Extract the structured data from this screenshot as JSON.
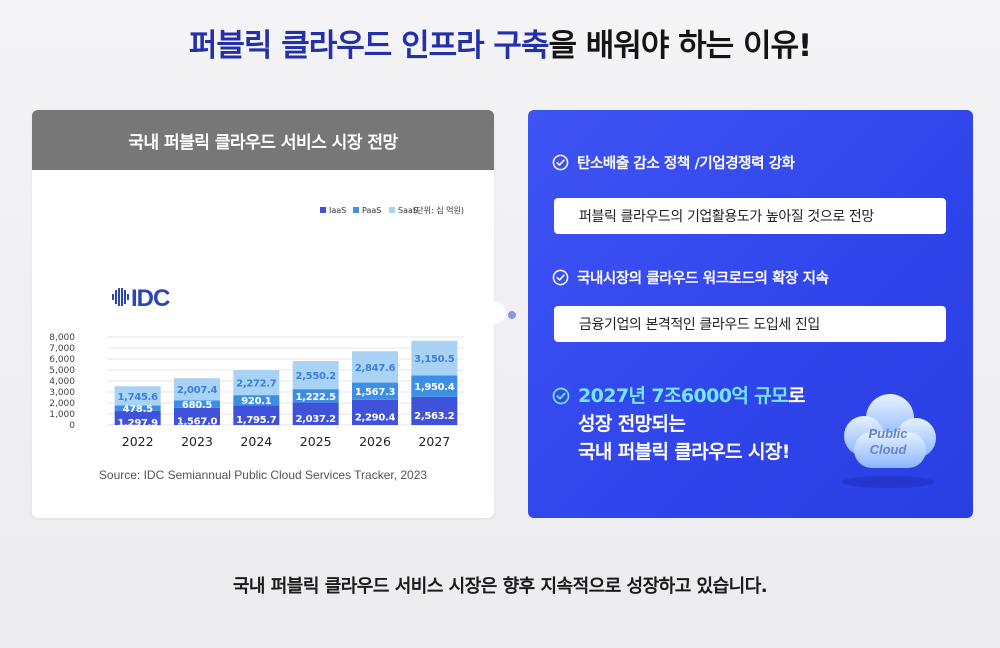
{
  "headline": {
    "highlight": "퍼블릭 클라우드 인프라 구축",
    "rest": "을 배워야 하는 이유!"
  },
  "chart_card": {
    "header": "국내 퍼블릭 클라우드 서비스 시장 전망",
    "logo_text": "IDC",
    "unit_label": "(단위: 십 억원)",
    "source": "Source: IDC Semiannual Public Cloud Services Tracker, 2023"
  },
  "chart_data": {
    "type": "bar",
    "stacked": true,
    "title": "국내 퍼블릭 클라우드 서비스 시장 전망",
    "categories": [
      "2022",
      "2023",
      "2024",
      "2025",
      "2026",
      "2027"
    ],
    "series": [
      {
        "name": "IaaS",
        "color": "#3f52d9",
        "values": [
          1297.9,
          1567.0,
          1795.7,
          2037.2,
          2290.4,
          2563.2
        ],
        "labels": [
          "1,297.9",
          "1,567.0",
          "1,795.7",
          "2,037.2",
          "2,290.4",
          "2,563.2"
        ]
      },
      {
        "name": "PaaS",
        "color": "#3d8fe6",
        "values": [
          478.5,
          680.5,
          920.1,
          1222.5,
          1567.3,
          1950.4
        ],
        "labels": [
          "478.5",
          "680.5",
          "920.1",
          "1,222.5",
          "1,567.3",
          "1,950.4"
        ]
      },
      {
        "name": "SaaS",
        "color": "#a9d3f5",
        "values": [
          1745.6,
          2007.4,
          2272.7,
          2550.2,
          2847.6,
          3150.5
        ],
        "labels": [
          "1,745.6",
          "2,007.4",
          "2,272.7",
          "2,550.2",
          "2,847.6",
          "3,150.5"
        ]
      }
    ],
    "yticks": [
      "0",
      "1,000",
      "2,000",
      "3,000",
      "4,000",
      "5,000",
      "6,000",
      "7,000",
      "8,000"
    ],
    "ylim": [
      0,
      8000
    ],
    "grid": true,
    "legend": "top-right"
  },
  "panel": {
    "point1": "탄소배출 감소 정책 /기업경쟁력 강화",
    "pill1": "퍼블릭 클라우드의 기업활용도가 높아질 것으로 전망",
    "point2": "국내시장의 클라우드 워크로드의 확장 지속",
    "pill2": "금융기업의 본격적인 클라우드 도입세 진입",
    "big_highlight": "2027년 7조6000억 규모",
    "big_suffix": "로",
    "big_line2": "성장 전망되는",
    "big_line3": "국내 퍼블릭 클라우드 시장!",
    "cloud_line1": "Public",
    "cloud_line2": "Cloud",
    "check_icon": "check-circle-icon",
    "cloud_icon": "cloud-icon"
  },
  "footer": "국내 퍼블릭 클라우드 서비스 시장은 향후 지속적으로 성장하고 있습니다."
}
